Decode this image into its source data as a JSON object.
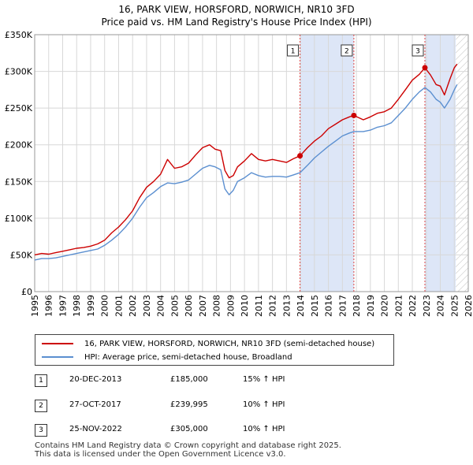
{
  "title_line1": "16, PARK VIEW, HORSFORD, NORWICH, NR10 3FD",
  "title_line2": "Price paid vs. HM Land Registry's House Price Index (HPI)",
  "colors": {
    "property": "#cc0000",
    "hpi": "#5b8fd0",
    "shade": "#dde6f7",
    "marker_line": "#dd4444"
  },
  "legend": {
    "property": "16, PARK VIEW, HORSFORD, NORWICH, NR10 3FD (semi-detached house)",
    "hpi": "HPI: Average price, semi-detached house, Broadland"
  },
  "transactions": [
    {
      "num": "1",
      "date": "20-DEC-2013",
      "price": "£185,000",
      "hpi": "15% ↑ HPI"
    },
    {
      "num": "2",
      "date": "27-OCT-2017",
      "price": "£239,995",
      "hpi": "10% ↑ HPI"
    },
    {
      "num": "3",
      "date": "25-NOV-2022",
      "price": "£305,000",
      "hpi": "10% ↑ HPI"
    }
  ],
  "footer": {
    "line1": "Contains HM Land Registry data © Crown copyright and database right 2025.",
    "line2": "This data is licensed under the Open Government Licence v3.0."
  },
  "chart_data": {
    "type": "line",
    "xlim": [
      1995,
      2026
    ],
    "ylim": [
      0,
      350000
    ],
    "x_ticks": [
      "1995",
      "1996",
      "1997",
      "1998",
      "1999",
      "2000",
      "2001",
      "2002",
      "2003",
      "2004",
      "2005",
      "2006",
      "2007",
      "2008",
      "2009",
      "2010",
      "2011",
      "2012",
      "2013",
      "2014",
      "2015",
      "2016",
      "2017",
      "2018",
      "2019",
      "2020",
      "2021",
      "2022",
      "2023",
      "2024",
      "2025",
      "2026"
    ],
    "y_ticks": [
      {
        "value": 0,
        "label": "£0"
      },
      {
        "value": 50000,
        "label": "£50K"
      },
      {
        "value": 100000,
        "label": "£100K"
      },
      {
        "value": 150000,
        "label": "£150K"
      },
      {
        "value": 200000,
        "label": "£200K"
      },
      {
        "value": 250000,
        "label": "£250K"
      },
      {
        "value": 300000,
        "label": "£300K"
      },
      {
        "value": 350000,
        "label": "£350K"
      }
    ],
    "grid": true,
    "shaded_spans": [
      [
        2013.97,
        2017.82
      ],
      [
        2022.9,
        2025.1
      ]
    ],
    "forecast_hatch_from": 2025.1,
    "series": [
      {
        "name": "16, PARK VIEW, HORSFORD, NORWICH, NR10 3FD (semi-detached house)",
        "x": [
          1995.0,
          1995.5,
          1996.0,
          1996.5,
          1997.0,
          1997.5,
          1998.0,
          1998.5,
          1999.0,
          1999.5,
          2000.0,
          2000.5,
          2001.0,
          2001.5,
          2002.0,
          2002.5,
          2003.0,
          2003.5,
          2004.0,
          2004.5,
          2005.0,
          2005.5,
          2006.0,
          2006.5,
          2007.0,
          2007.5,
          2007.9,
          2008.3,
          2008.6,
          2008.9,
          2009.2,
          2009.5,
          2010.0,
          2010.5,
          2011.0,
          2011.5,
          2012.0,
          2012.5,
          2013.0,
          2013.5,
          2013.97,
          2014.5,
          2015.0,
          2015.5,
          2016.0,
          2016.5,
          2017.0,
          2017.5,
          2017.82,
          2018.5,
          2019.0,
          2019.5,
          2020.0,
          2020.5,
          2021.0,
          2021.5,
          2022.0,
          2022.5,
          2022.9,
          2023.3,
          2023.7,
          2024.0,
          2024.3,
          2024.7,
          2025.0,
          2025.2
        ],
        "y": [
          50000,
          52000,
          51000,
          53000,
          55000,
          57000,
          59000,
          60000,
          62000,
          65000,
          70000,
          80000,
          88000,
          98000,
          110000,
          128000,
          142000,
          150000,
          160000,
          180000,
          168000,
          170000,
          175000,
          186000,
          196000,
          200000,
          194000,
          192000,
          165000,
          155000,
          158000,
          170000,
          178000,
          188000,
          180000,
          178000,
          180000,
          178000,
          176000,
          181000,
          185000,
          196000,
          205000,
          212000,
          222000,
          228000,
          234000,
          238000,
          239995,
          234000,
          238000,
          243000,
          245000,
          250000,
          262000,
          275000,
          288000,
          296000,
          305000,
          295000,
          282000,
          280000,
          268000,
          290000,
          305000,
          310000
        ]
      },
      {
        "name": "HPI: Average price, semi-detached house, Broadland",
        "x": [
          1995.0,
          1995.5,
          1996.0,
          1996.5,
          1997.0,
          1997.5,
          1998.0,
          1998.5,
          1999.0,
          1999.5,
          2000.0,
          2000.5,
          2001.0,
          2001.5,
          2002.0,
          2002.5,
          2003.0,
          2003.5,
          2004.0,
          2004.5,
          2005.0,
          2005.5,
          2006.0,
          2006.5,
          2007.0,
          2007.5,
          2007.9,
          2008.3,
          2008.6,
          2008.9,
          2009.2,
          2009.5,
          2010.0,
          2010.5,
          2011.0,
          2011.5,
          2012.0,
          2012.5,
          2013.0,
          2013.5,
          2013.97,
          2014.5,
          2015.0,
          2015.5,
          2016.0,
          2016.5,
          2017.0,
          2017.5,
          2017.82,
          2018.5,
          2019.0,
          2019.5,
          2020.0,
          2020.5,
          2021.0,
          2021.5,
          2022.0,
          2022.5,
          2022.9,
          2023.3,
          2023.7,
          2024.0,
          2024.3,
          2024.7,
          2025.0,
          2025.2
        ],
        "y": [
          43000,
          45000,
          45000,
          46000,
          48000,
          50000,
          52000,
          54000,
          56000,
          58000,
          63000,
          70000,
          78000,
          88000,
          100000,
          115000,
          128000,
          135000,
          143000,
          148000,
          147000,
          149000,
          152000,
          160000,
          168000,
          172000,
          170000,
          166000,
          140000,
          132000,
          138000,
          150000,
          155000,
          162000,
          158000,
          156000,
          157000,
          157000,
          156000,
          159000,
          162000,
          172000,
          182000,
          190000,
          198000,
          205000,
          212000,
          216000,
          218000,
          218000,
          220000,
          224000,
          226000,
          230000,
          240000,
          250000,
          262000,
          272000,
          278000,
          272000,
          262000,
          258000,
          250000,
          262000,
          275000,
          282000
        ]
      }
    ],
    "markers": [
      {
        "label": "1",
        "x": 2013.97,
        "y": 185000
      },
      {
        "label": "2",
        "x": 2017.82,
        "y": 239995
      },
      {
        "label": "3",
        "x": 2022.9,
        "y": 305000
      }
    ]
  }
}
